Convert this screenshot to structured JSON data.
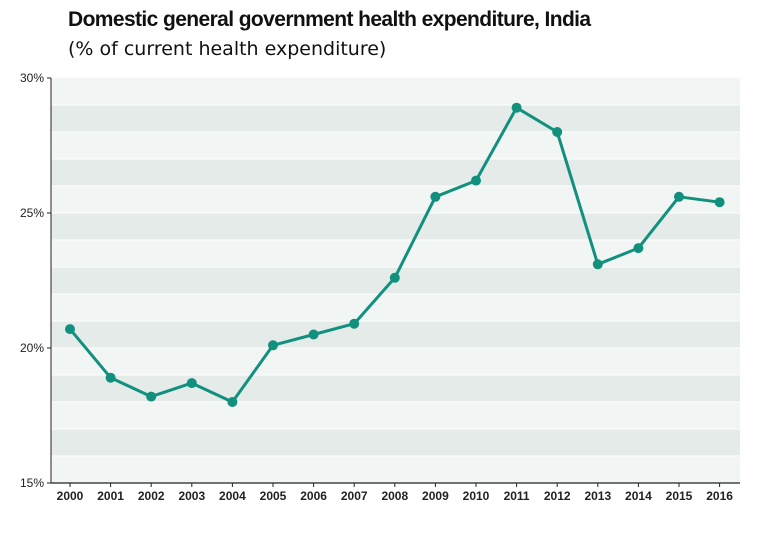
{
  "title": "Domestic general government health expenditure, India",
  "subtitle": "(% of current health expenditure)",
  "chart_data": {
    "type": "line",
    "title": "Domestic general government health expenditure, India",
    "subtitle": "(% of current health expenditure)",
    "x": [
      "2000",
      "2001",
      "2002",
      "2003",
      "2004",
      "2005",
      "2006",
      "2007",
      "2008",
      "2009",
      "2010",
      "2011",
      "2012",
      "2013",
      "2014",
      "2015",
      "2016"
    ],
    "series": [
      {
        "values": [
          20.7,
          18.9,
          18.2,
          18.7,
          18.0,
          20.1,
          20.5,
          20.9,
          22.6,
          25.6,
          26.2,
          28.9,
          28.0,
          23.1,
          23.7,
          25.6,
          25.4
        ]
      }
    ],
    "ylim": [
      15,
      30
    ],
    "yticks": [
      15,
      20,
      25,
      30
    ],
    "ytick_labels": [
      "15%",
      "20%",
      "25%",
      "30%"
    ],
    "color": "#12907e",
    "grid": "horizontal bands"
  }
}
